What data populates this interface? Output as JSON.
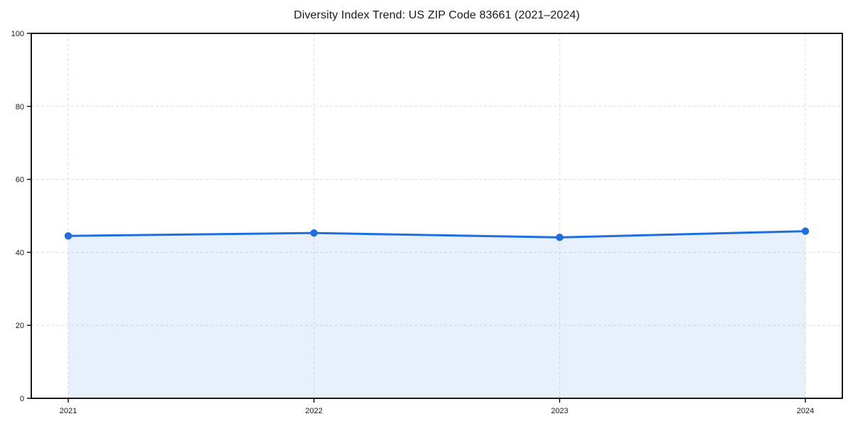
{
  "figure": {
    "title": "Diversity Index Trend: US ZIP Code 83661 (2021–2024)"
  },
  "chart_data": {
    "type": "area",
    "x": [
      2021,
      2022,
      2023,
      2024
    ],
    "xticklabels": [
      "2021",
      "2022",
      "2023",
      "2024"
    ],
    "values": [
      44.5,
      45.3,
      44.1,
      45.8
    ],
    "title": "Diversity Index Trend: US ZIP Code 83661 (2021–2024)",
    "xlabel": "",
    "ylabel": "",
    "ylim": [
      0,
      100
    ],
    "yticks": [
      0,
      20,
      40,
      60,
      80,
      100
    ],
    "grid": true,
    "grid_style": "dashed",
    "legend": "none",
    "colors": {
      "line": "#1d6ee3",
      "marker": "#1d6ee3",
      "fill": "rgba(29,110,227,0.10)",
      "grid": "#dedede",
      "spine": "#000000",
      "tick_label": "#1a1a1a"
    }
  }
}
